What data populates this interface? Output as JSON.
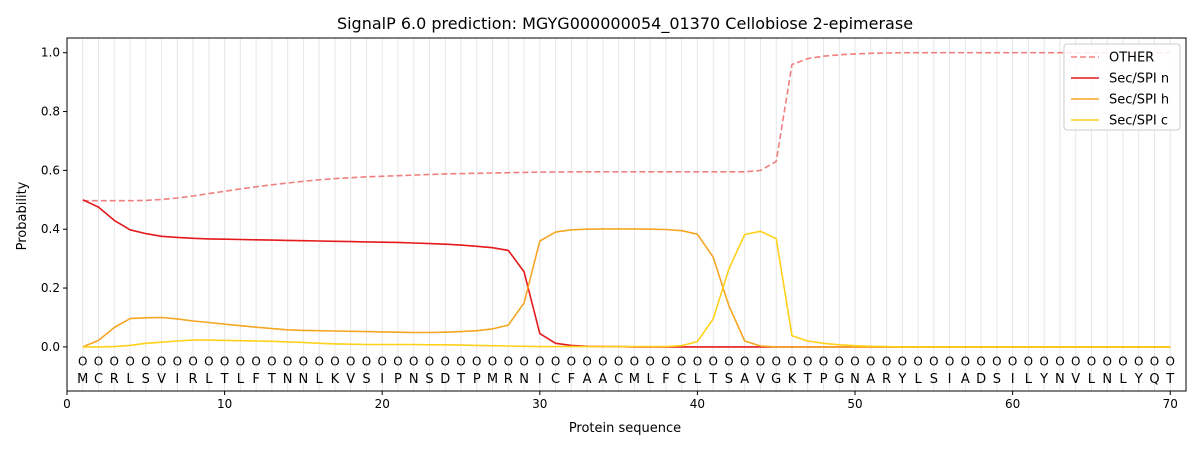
{
  "chart_data": {
    "type": "line",
    "title": "SignalP 6.0 prediction: MGYG000000054_01370 Cellobiose 2-epimerase",
    "xlabel": "Protein sequence",
    "ylabel": "Probability",
    "xlim": [
      0,
      71
    ],
    "ylim": [
      -0.15,
      1.05
    ],
    "x_ticks": [
      "0",
      "10",
      "20",
      "30",
      "40",
      "50",
      "60",
      "70"
    ],
    "y_ticks": [
      "0.0",
      "0.2",
      "0.4",
      "0.6",
      "0.8",
      "1.0"
    ],
    "legend_position": "top-right",
    "sequence": [
      "M",
      "C",
      "R",
      "L",
      "S",
      "V",
      "I",
      "R",
      "L",
      "T",
      "L",
      "F",
      "T",
      "N",
      "N",
      "L",
      "K",
      "V",
      "S",
      "I",
      "P",
      "N",
      "S",
      "D",
      "T",
      "P",
      "M",
      "R",
      "N",
      "I",
      "C",
      "F",
      "A",
      "A",
      "C",
      "M",
      "L",
      "F",
      "C",
      "L",
      "T",
      "S",
      "A",
      "V",
      "G",
      "K",
      "T",
      "P",
      "G",
      "N",
      "A",
      "R",
      "Y",
      "L",
      "S",
      "I",
      "A",
      "D",
      "S",
      "I",
      "L",
      "Y",
      "N",
      "V",
      "L",
      "N",
      "L",
      "Y",
      "Q",
      "T"
    ],
    "region_marker": "O",
    "series": [
      {
        "name": "OTHER",
        "color": "#f08080",
        "dash": "dashed",
        "values": [
          0.497,
          0.497,
          0.497,
          0.497,
          0.498,
          0.501,
          0.506,
          0.513,
          0.521,
          0.529,
          0.537,
          0.544,
          0.551,
          0.557,
          0.563,
          0.568,
          0.572,
          0.575,
          0.578,
          0.58,
          0.582,
          0.584,
          0.586,
          0.588,
          0.589,
          0.59,
          0.591,
          0.592,
          0.593,
          0.594,
          0.594,
          0.595,
          0.595,
          0.595,
          0.595,
          0.595,
          0.595,
          0.595,
          0.595,
          0.595,
          0.595,
          0.595,
          0.595,
          0.6,
          0.63,
          0.96,
          0.98,
          0.988,
          0.993,
          0.996,
          0.998,
          0.999,
          1.0,
          1.0,
          1.0,
          1.0,
          1.0,
          1.0,
          1.0,
          1.0,
          1.0,
          1.0,
          1.0,
          1.0,
          1.0,
          1.0,
          1.0,
          1.0,
          1.0,
          1.0
        ]
      },
      {
        "name": "Sec/SPI n",
        "color": "#e41a1c",
        "dash": "solid",
        "values": [
          0.5,
          0.475,
          0.43,
          0.398,
          0.385,
          0.376,
          0.372,
          0.369,
          0.367,
          0.366,
          0.365,
          0.364,
          0.363,
          0.362,
          0.361,
          0.36,
          0.359,
          0.358,
          0.357,
          0.356,
          0.355,
          0.353,
          0.351,
          0.349,
          0.346,
          0.342,
          0.337,
          0.328,
          0.255,
          0.045,
          0.012,
          0.005,
          0.002,
          0.001,
          0.001,
          0.0,
          0.0,
          0.0,
          0.0,
          0.0,
          0.0,
          0.0,
          0.0,
          0.0,
          0.0,
          0.0,
          0.0,
          0.0,
          0.0,
          0.0,
          0.0,
          0.0,
          0.0,
          0.0,
          0.0,
          0.0,
          0.0,
          0.0,
          0.0,
          0.0,
          0.0,
          0.0,
          0.0,
          0.0,
          0.0,
          0.0,
          0.0,
          0.0,
          0.0,
          0.0
        ]
      },
      {
        "name": "Sec/SPI h",
        "color": "#f5a623",
        "dash": "solid",
        "values": [
          0.0,
          0.022,
          0.066,
          0.096,
          0.099,
          0.1,
          0.095,
          0.088,
          0.083,
          0.077,
          0.072,
          0.067,
          0.062,
          0.058,
          0.056,
          0.055,
          0.054,
          0.053,
          0.052,
          0.051,
          0.05,
          0.049,
          0.049,
          0.05,
          0.052,
          0.055,
          0.061,
          0.074,
          0.15,
          0.36,
          0.39,
          0.398,
          0.4,
          0.401,
          0.401,
          0.401,
          0.4,
          0.399,
          0.395,
          0.383,
          0.305,
          0.14,
          0.02,
          0.003,
          0.0,
          0.0,
          0.0,
          0.0,
          0.0,
          0.0,
          0.0,
          0.0,
          0.0,
          0.0,
          0.0,
          0.0,
          0.0,
          0.0,
          0.0,
          0.0,
          0.0,
          0.0,
          0.0,
          0.0,
          0.0,
          0.0,
          0.0,
          0.0,
          0.0,
          0.0
        ]
      },
      {
        "name": "Sec/SPI c",
        "color": "#ffd11a",
        "dash": "solid",
        "values": [
          0.0,
          0.0,
          0.001,
          0.005,
          0.012,
          0.016,
          0.02,
          0.023,
          0.023,
          0.022,
          0.021,
          0.02,
          0.019,
          0.017,
          0.015,
          0.012,
          0.01,
          0.009,
          0.008,
          0.008,
          0.008,
          0.008,
          0.007,
          0.007,
          0.006,
          0.005,
          0.004,
          0.003,
          0.002,
          0.001,
          0.001,
          0.001,
          0.001,
          0.001,
          0.001,
          0.001,
          0.001,
          0.001,
          0.004,
          0.018,
          0.095,
          0.265,
          0.382,
          0.393,
          0.368,
          0.038,
          0.02,
          0.012,
          0.007,
          0.004,
          0.002,
          0.001,
          0.0,
          0.0,
          0.0,
          0.0,
          0.0,
          0.0,
          0.0,
          0.0,
          0.0,
          0.0,
          0.0,
          0.0,
          0.0,
          0.0,
          0.0,
          0.0,
          0.0,
          0.0
        ]
      }
    ]
  }
}
